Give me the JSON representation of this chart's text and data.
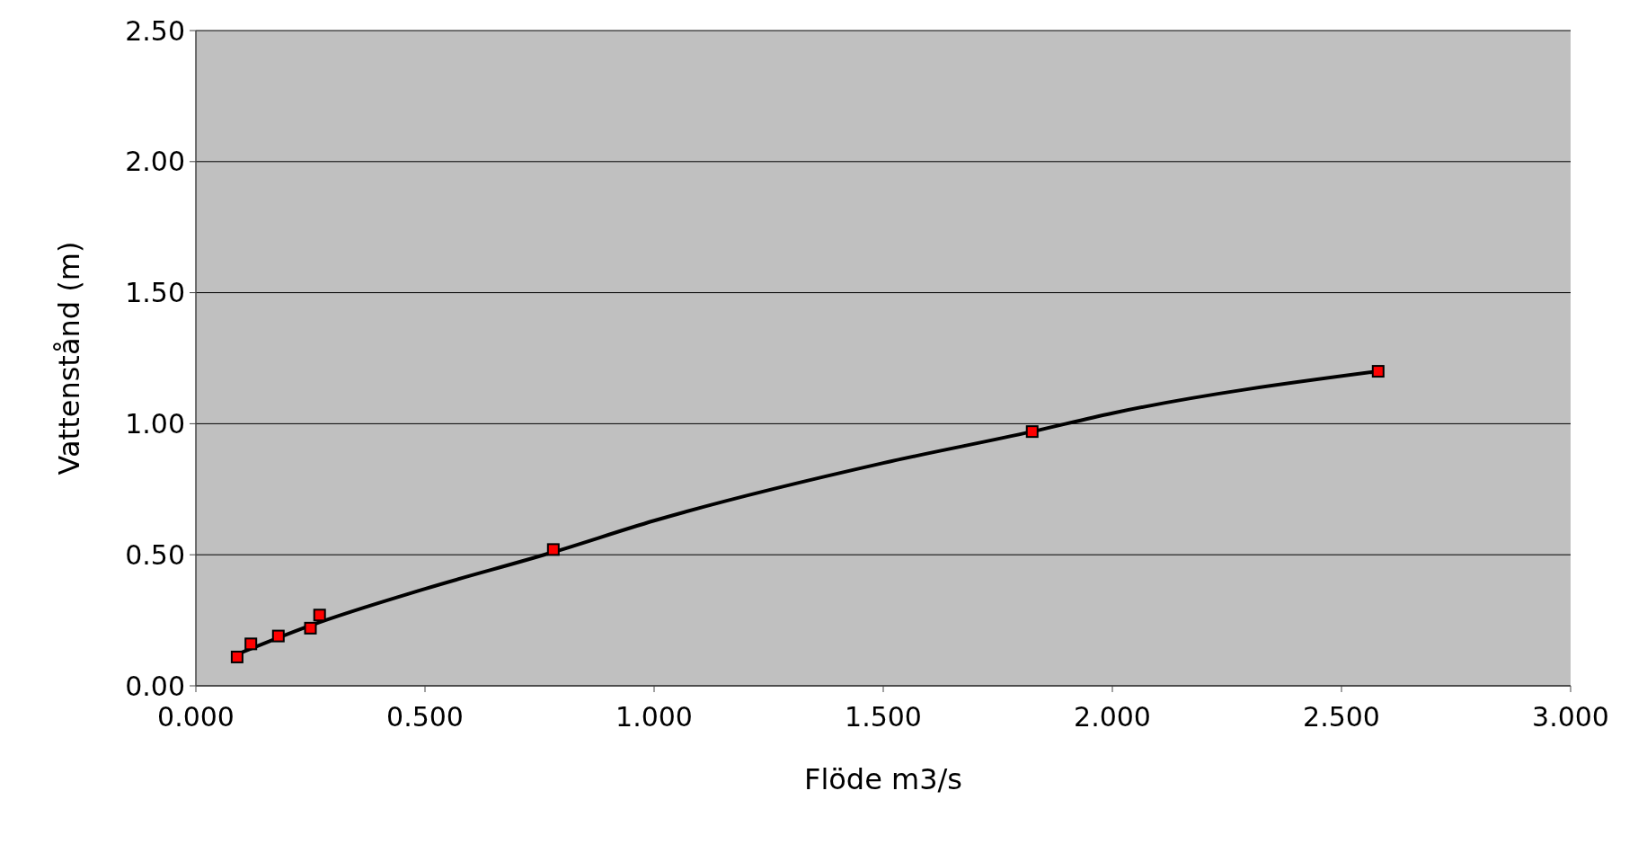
{
  "chart_data": {
    "type": "scatter",
    "xlabel": "Flöde m3/s",
    "ylabel": "Vattenstånd (m)",
    "xlim": [
      0,
      3
    ],
    "xticks": [
      {
        "value": 0,
        "label": "0.000"
      },
      {
        "value": 0.5,
        "label": "0.500"
      },
      {
        "value": 1,
        "label": "1.000"
      },
      {
        "value": 1.5,
        "label": "1.500"
      },
      {
        "value": 2,
        "label": "2.000"
      },
      {
        "value": 2.5,
        "label": "2.500"
      },
      {
        "value": 3,
        "label": "3.000"
      }
    ],
    "ylim": [
      0,
      2.5
    ],
    "yticks": [
      {
        "value": 0,
        "label": "0.00"
      },
      {
        "value": 0.5,
        "label": "0.50"
      },
      {
        "value": 1,
        "label": "1.00"
      },
      {
        "value": 1.5,
        "label": "1.50"
      },
      {
        "value": 2,
        "label": "2.00"
      },
      {
        "value": 2.5,
        "label": "2.50"
      }
    ],
    "grid": "y",
    "series": [
      {
        "type": "line",
        "color": "#000000",
        "marker": "none",
        "line_style": "solid",
        "x": [
          0.09,
          0.25,
          0.5,
          0.78,
          1.0,
          1.5,
          1.825,
          2.0,
          2.58
        ],
        "values": [
          0.12,
          0.23,
          0.37,
          0.51,
          0.63,
          0.85,
          0.97,
          1.04,
          1.2
        ]
      },
      {
        "color": "#ff0000",
        "marker": "square",
        "x": [
          0.09,
          0.12,
          0.18,
          0.25,
          0.27,
          0.78,
          1.825,
          2.58
        ],
        "values": [
          0.11,
          0.16,
          0.19,
          0.22,
          0.27,
          0.52,
          0.97,
          1.2
        ]
      }
    ]
  }
}
